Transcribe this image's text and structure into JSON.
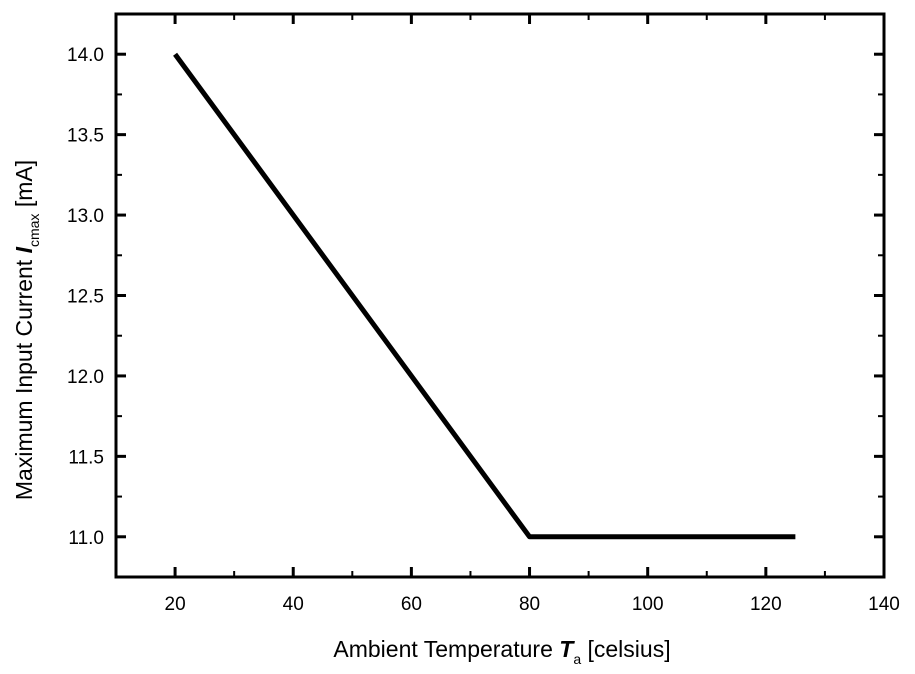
{
  "chart_data": {
    "type": "line",
    "title": "",
    "xlabel": {
      "text": "Ambient Temperature ",
      "symbol": "T",
      "subscript": "a",
      "unit": " [celsius]"
    },
    "ylabel": {
      "text": "Maximum Input Current ",
      "symbol": "I",
      "subscript": "cmax",
      "unit": " [mA]"
    },
    "xlim": [
      10,
      140
    ],
    "ylim": [
      10.75,
      14.25
    ],
    "x_ticks": [
      20,
      40,
      60,
      80,
      100,
      120,
      140
    ],
    "x_tick_labels": [
      "20",
      "40",
      "60",
      "80",
      "100",
      "120",
      "140"
    ],
    "y_ticks": [
      11.0,
      11.5,
      12.0,
      12.5,
      13.0,
      13.5,
      14.0
    ],
    "y_tick_labels": [
      "11.0",
      "11.5",
      "12.0",
      "12.5",
      "13.0",
      "13.5",
      "14.0"
    ],
    "grid": false,
    "series": [
      {
        "x": [
          20,
          80,
          125
        ],
        "y": [
          14.0,
          11.0,
          11.0
        ],
        "color": "#000000"
      }
    ]
  }
}
